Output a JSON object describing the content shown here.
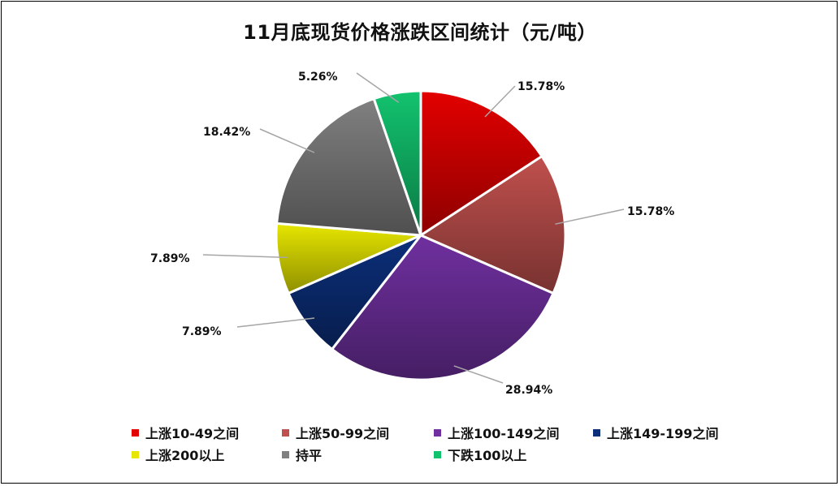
{
  "chart_data": {
    "type": "pie",
    "title": "11月底现货价格涨跌区间统计（元/吨）",
    "legend_position": "bottom",
    "slices": [
      {
        "label": "上涨10-49之间",
        "value": 15.78,
        "display": "15.78%",
        "color": "#e30000"
      },
      {
        "label": "上涨50-99之间",
        "value": 15.78,
        "display": "15.78%",
        "color": "#c0504d"
      },
      {
        "label": "上涨100-149之间",
        "value": 28.94,
        "display": "28.94%",
        "color": "#7030a0"
      },
      {
        "label": "上涨149-199之间",
        "value": 7.89,
        "display": "7.89%",
        "color": "#0c2f7a"
      },
      {
        "label": "上涨200以上",
        "value": 7.89,
        "display": "7.89%",
        "color": "#e6e600"
      },
      {
        "label": "持平",
        "value": 18.42,
        "display": "18.42%",
        "color": "#808080"
      },
      {
        "label": "下跌100以上",
        "value": 5.26,
        "display": "5.26%",
        "color": "#12c36e"
      }
    ]
  }
}
